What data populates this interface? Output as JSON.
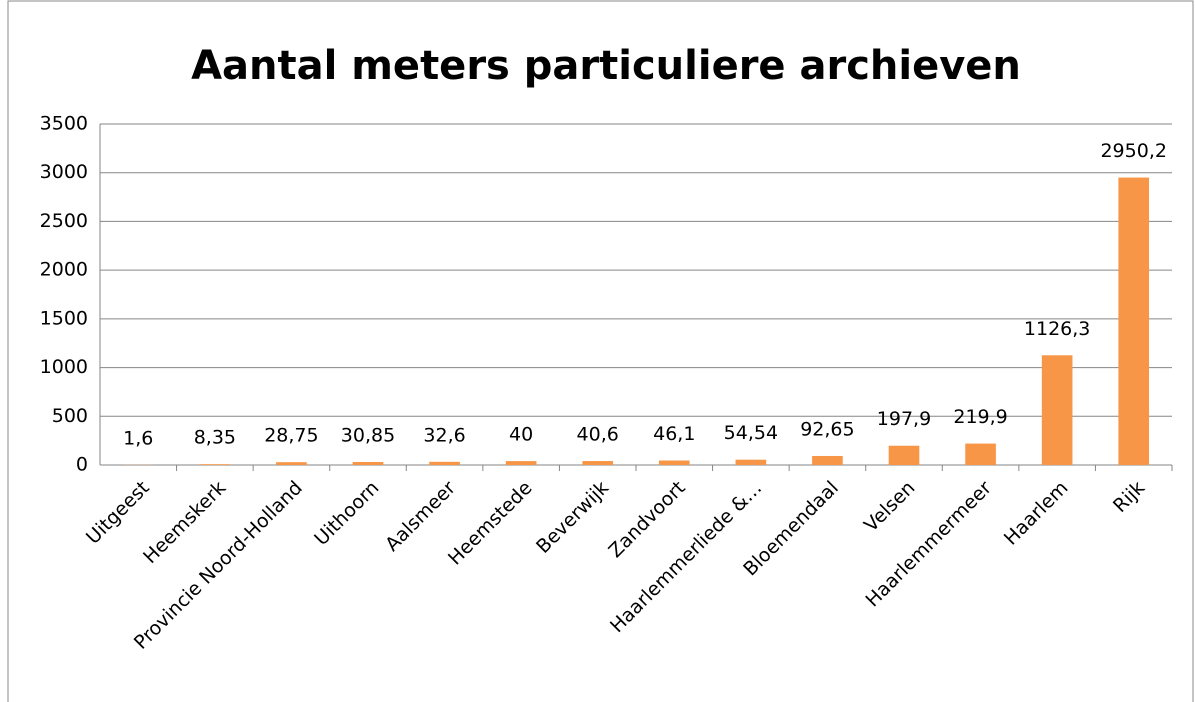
{
  "chart_data": {
    "type": "bar",
    "title": "Aantal meters particuliere archieven",
    "categories": [
      "Uitgeest",
      "Heemskerk",
      "Provincie Noord-Holland",
      "Uithoorn",
      "Aalsmeer",
      "Heemstede",
      "Beverwijk",
      "Zandvoort",
      "Haarlemmerliede &…",
      "Bloemendaal",
      "Velsen",
      "Haarlemmermeer",
      "Haarlem",
      "Rijk"
    ],
    "values": [
      1.6,
      8.35,
      28.75,
      30.85,
      32.6,
      40,
      40.6,
      46.1,
      54.54,
      92.65,
      197.9,
      219.9,
      1126.3,
      2950.2
    ],
    "value_labels": [
      "1,6",
      "8,35",
      "28,75",
      "30,85",
      "32,6",
      "40",
      "40,6",
      "46,1",
      "54,54",
      "92,65",
      "197,9",
      "219,9",
      "1126,3",
      "2950,2"
    ],
    "color": "#f79646",
    "ylim": [
      0,
      3500
    ],
    "yticks": [
      0,
      500,
      1000,
      1500,
      2000,
      2500,
      3000,
      3500
    ],
    "grid": true
  }
}
